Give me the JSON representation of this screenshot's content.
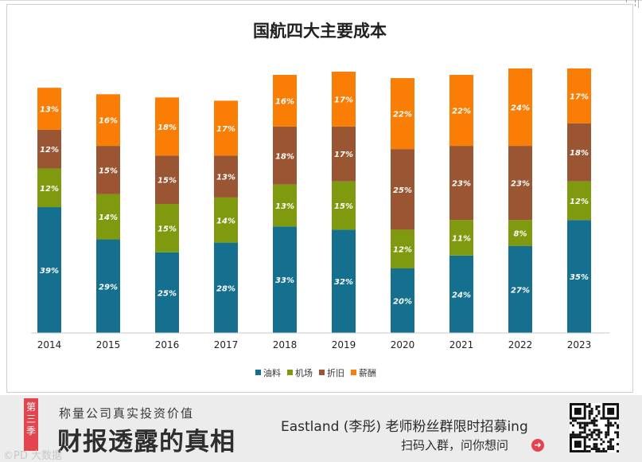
{
  "chart_data": {
    "type": "bar",
    "stacked": true,
    "title": "国航四大主要成本",
    "categories": [
      "2014",
      "2015",
      "2016",
      "2017",
      "2018",
      "2019",
      "2020",
      "2021",
      "2022",
      "2023"
    ],
    "series": [
      {
        "name": "油料",
        "color": "#15708f",
        "values": [
          39,
          29,
          25,
          28,
          33,
          32,
          20,
          24,
          27,
          35
        ]
      },
      {
        "name": "机场",
        "color": "#7f9a0f",
        "values": [
          12,
          14,
          15,
          14,
          13,
          15,
          12,
          11,
          8,
          12
        ]
      },
      {
        "name": "折旧",
        "color": "#9a5533",
        "values": [
          12,
          15,
          15,
          13,
          18,
          17,
          25,
          23,
          23,
          18
        ]
      },
      {
        "name": "薪酬",
        "color": "#fa7d06",
        "values": [
          13,
          16,
          18,
          17,
          16,
          17,
          22,
          22,
          24,
          17
        ]
      }
    ],
    "value_suffix": "%",
    "legend_position": "bottom",
    "grid": false
  },
  "banner": {
    "badge_chars": [
      "第",
      "三",
      "季"
    ],
    "slogan_small": "称量公司真实投资价值",
    "slogan_big": "财报透露的真相",
    "promo_line1": "Eastland (李彤) 老师粉丝群限时招募ing",
    "promo_line2": "扫码入群，问你想问",
    "watermark": "©PD 大数据"
  }
}
